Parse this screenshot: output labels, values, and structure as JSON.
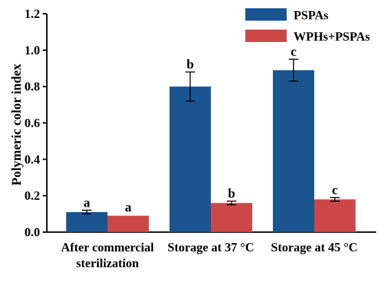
{
  "chart_data": {
    "type": "bar",
    "ylabel": "Polymeric color index",
    "ylim": [
      0,
      1.2
    ],
    "yticks": [
      "0.0",
      "0.2",
      "0.4",
      "0.6",
      "0.8",
      "1.0",
      "1.2"
    ],
    "categories": [
      [
        "After commercial",
        "sterilization"
      ],
      [
        "Storage at 37 °C"
      ],
      [
        "Storage at 45 °C"
      ]
    ],
    "series": [
      {
        "name": "PSPAs",
        "color": "#1a5592",
        "values": [
          0.11,
          0.8,
          0.89
        ],
        "errors": [
          0.01,
          0.08,
          0.06
        ],
        "labels": [
          "a",
          "b",
          "c"
        ]
      },
      {
        "name": "WPHs+PSPAs",
        "color": "#cc4848",
        "values": [
          0.09,
          0.16,
          0.18
        ],
        "errors": [
          0,
          0.01,
          0.01
        ],
        "labels": [
          "a",
          "b",
          "c"
        ]
      }
    ],
    "legend_position": "top-right",
    "grid": false
  }
}
